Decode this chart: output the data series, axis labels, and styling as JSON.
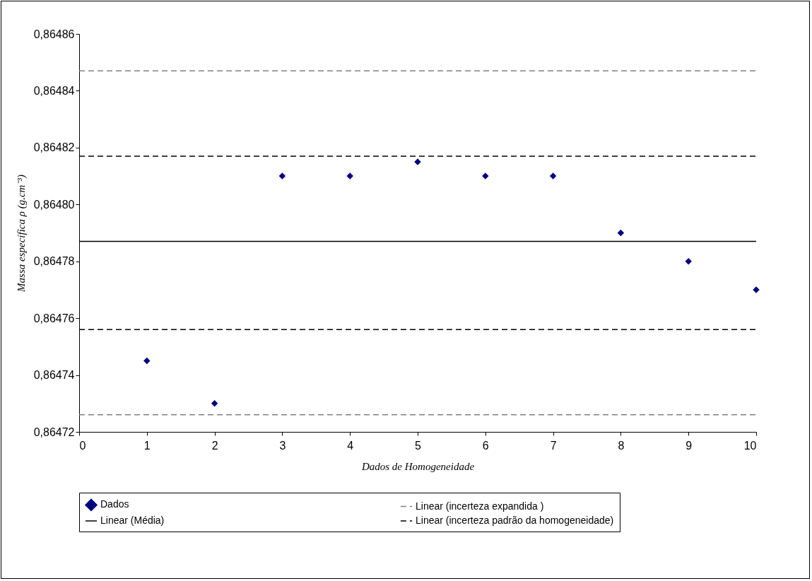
{
  "chart_data": {
    "type": "scatter",
    "xlabel": "Dados de Homogeneidade",
    "ylabel": "Massa específica ρ (g.cm⁻³)",
    "xlim": [
      0,
      10
    ],
    "xticks": [
      0,
      1,
      2,
      3,
      4,
      5,
      6,
      7,
      8,
      9,
      10
    ],
    "ylim": [
      0.86472,
      0.86486
    ],
    "yticks": [
      {
        "value": 0.86472,
        "label": "0,86472"
      },
      {
        "value": 0.86474,
        "label": "0,86474"
      },
      {
        "value": 0.86476,
        "label": "0,86476"
      },
      {
        "value": 0.86478,
        "label": "0,86478"
      },
      {
        "value": 0.8648,
        "label": "0,86480"
      },
      {
        "value": 0.86482,
        "label": "0,86482"
      },
      {
        "value": 0.86484,
        "label": "0,86484"
      },
      {
        "value": 0.86486,
        "label": "0,86486"
      }
    ],
    "grid": false,
    "legend": "bottom",
    "series": [
      {
        "name": "Dados",
        "marker": "diamond",
        "color": "#000080",
        "x": [
          1,
          2,
          3,
          4,
          5,
          6,
          7,
          8,
          9,
          10
        ],
        "values": [
          0.864745,
          0.86473,
          0.86481,
          0.86481,
          0.864815,
          0.86481,
          0.86481,
          0.86479,
          0.86478,
          0.86477
        ]
      },
      {
        "name": "Linear (incerteza expandida )",
        "type": "line",
        "color": "#808080",
        "line_style": "dashed",
        "x": [
          0,
          10
        ],
        "values": [
          0.864847,
          0.864847
        ]
      },
      {
        "name": "Linear (Média)",
        "type": "line",
        "color": "#000000",
        "line_style": "solid",
        "x": [
          0,
          10
        ],
        "values": [
          0.864787,
          0.864787
        ]
      },
      {
        "name": "Linear (incerteza padrão da homogeneidade)",
        "type": "line",
        "color": "#000000",
        "line_style": "dashed",
        "x": [
          0,
          10
        ],
        "values": [
          0.864817,
          0.864817
        ]
      },
      {
        "type": "line",
        "color": "#808080",
        "line_style": "dashed",
        "x": [
          0,
          10
        ],
        "values": [
          0.864726,
          0.864726
        ]
      },
      {
        "type": "line",
        "color": "#000000",
        "line_style": "dashed",
        "x": [
          0,
          10
        ],
        "values": [
          0.864756,
          0.864756
        ]
      }
    ]
  }
}
